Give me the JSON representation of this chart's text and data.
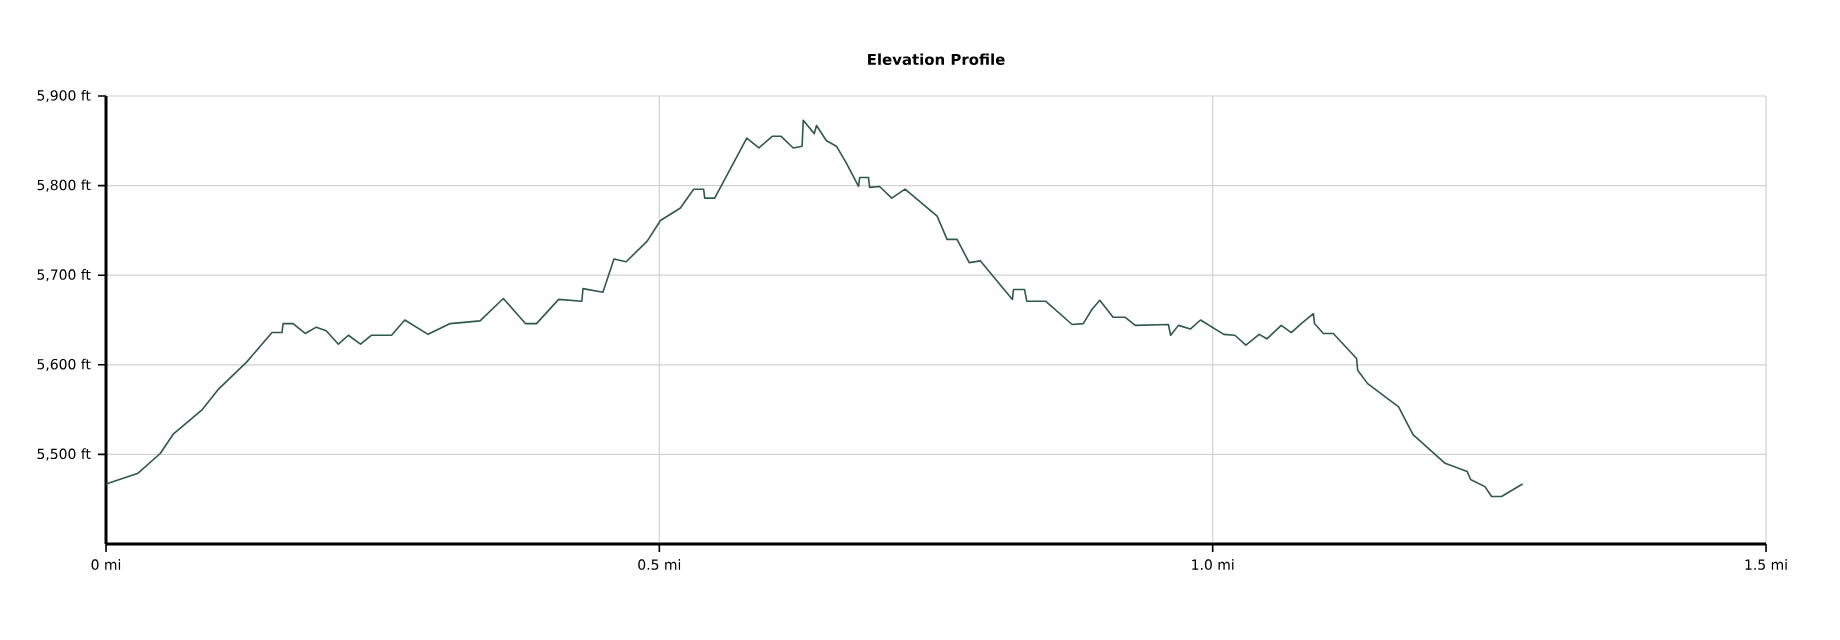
{
  "chart_data": {
    "type": "line",
    "title": "Elevation Profile",
    "color": "#2f5a48",
    "marker": "none",
    "line_style": "solid",
    "grid": true,
    "xlim": [
      0,
      1.5
    ],
    "ylim": [
      5400,
      5900
    ],
    "xticks": [
      {
        "value": 0,
        "label": "0 mi"
      },
      {
        "value": 0.5,
        "label": "0.5 mi"
      },
      {
        "value": 1.0,
        "label": "1.0 mi"
      },
      {
        "value": 1.5,
        "label": "1.5 mi"
      }
    ],
    "yticks": [
      {
        "value": 5500,
        "label": "5,500 ft"
      },
      {
        "value": 5600,
        "label": "5,600 ft"
      },
      {
        "value": 5700,
        "label": "5,700 ft"
      },
      {
        "value": 5800,
        "label": "5,800 ft"
      },
      {
        "value": 5900,
        "label": "5,900 ft"
      }
    ],
    "x": [
      0.0,
      0.029,
      0.049,
      0.061,
      0.087,
      0.101,
      0.127,
      0.15,
      0.159,
      0.16,
      0.169,
      0.18,
      0.19,
      0.199,
      0.21,
      0.219,
      0.23,
      0.24,
      0.258,
      0.27,
      0.291,
      0.311,
      0.338,
      0.359,
      0.379,
      0.389,
      0.409,
      0.43,
      0.431,
      0.449,
      0.459,
      0.47,
      0.489,
      0.501,
      0.519,
      0.531,
      0.54,
      0.541,
      0.55,
      0.579,
      0.59,
      0.602,
      0.61,
      0.621,
      0.629,
      0.63,
      0.64,
      0.642,
      0.651,
      0.66,
      0.669,
      0.68,
      0.681,
      0.689,
      0.69,
      0.699,
      0.71,
      0.722,
      0.751,
      0.76,
      0.769,
      0.78,
      0.79,
      0.819,
      0.82,
      0.83,
      0.832,
      0.849,
      0.873,
      0.883,
      0.891,
      0.898,
      0.91,
      0.921,
      0.93,
      0.96,
      0.962,
      0.969,
      0.98,
      0.989,
      1.01,
      1.02,
      1.03,
      1.042,
      1.049,
      1.062,
      1.071,
      1.08,
      1.091,
      1.092,
      1.1,
      1.109,
      1.13,
      1.131,
      1.14,
      1.168,
      1.181,
      1.21,
      1.23,
      1.233,
      1.246,
      1.252,
      1.261,
      1.28
    ],
    "values": [
      5467,
      5479,
      5501,
      5523,
      5550,
      5572,
      5603,
      5636,
      5636,
      5646,
      5646,
      5635,
      5642,
      5638,
      5623,
      5633,
      5623,
      5633,
      5633,
      5650,
      5634,
      5646,
      5649,
      5674,
      5646,
      5646,
      5673,
      5671,
      5685,
      5681,
      5718,
      5715,
      5738,
      5761,
      5775,
      5796,
      5796,
      5786,
      5786,
      5853,
      5842,
      5855,
      5855,
      5842,
      5844,
      5873,
      5858,
      5867,
      5850,
      5844,
      5825,
      5799,
      5809,
      5809,
      5798,
      5799,
      5786,
      5796,
      5766,
      5740,
      5740,
      5714,
      5716,
      5673,
      5684,
      5684,
      5671,
      5671,
      5645,
      5646,
      5662,
      5672,
      5653,
      5653,
      5644,
      5645,
      5633,
      5644,
      5640,
      5650,
      5634,
      5633,
      5622,
      5634,
      5629,
      5644,
      5636,
      5646,
      5657,
      5646,
      5635,
      5635,
      5607,
      5594,
      5579,
      5553,
      5522,
      5490,
      5481,
      5472,
      5464,
      5453,
      5453,
      5467
    ]
  }
}
